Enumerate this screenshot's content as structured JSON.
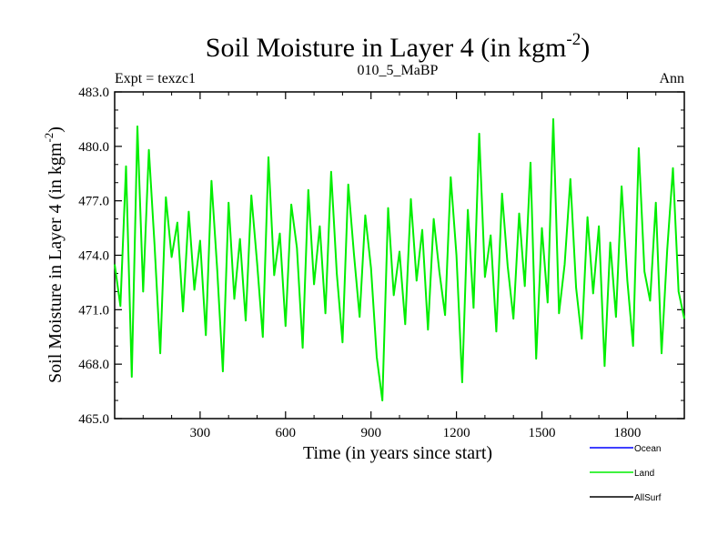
{
  "chart_data": {
    "type": "line",
    "title": "Soil Moisture in Layer 4 (in kgm",
    "title_sup": "-2",
    "title_close": ")",
    "subtitle_left": "Expt = texzc1",
    "subtitle_center": "010_5_MaBP",
    "subtitle_right": "Ann",
    "xlabel": "Time (in years since start)",
    "ylabel": "Soil Moisture in Layer 4 (in kgm",
    "ylabel_sup": "-2",
    "ylabel_close": ")",
    "xlim": [
      0,
      2000
    ],
    "ylim": [
      465.0,
      483.0
    ],
    "xticks": [
      300,
      600,
      900,
      1200,
      1500,
      1800
    ],
    "xtick_labels": [
      "300",
      "600",
      "900",
      "1200",
      "1500",
      "1800"
    ],
    "yticks": [
      465.0,
      468.0,
      471.0,
      474.0,
      477.0,
      480.0,
      483.0
    ],
    "ytick_labels": [
      "465.0",
      "468.0",
      "471.0",
      "474.0",
      "477.0",
      "480.0",
      "483.0"
    ],
    "series": [
      {
        "name": "Land",
        "color": "#00ee00",
        "x": [
          0,
          20,
          40,
          60,
          80,
          100,
          120,
          140,
          160,
          180,
          200,
          220,
          240,
          260,
          280,
          300,
          320,
          340,
          360,
          380,
          400,
          420,
          440,
          460,
          480,
          500,
          520,
          540,
          560,
          580,
          600,
          620,
          640,
          660,
          680,
          700,
          720,
          740,
          760,
          780,
          800,
          820,
          840,
          860,
          880,
          900,
          920,
          940,
          960,
          980,
          1000,
          1020,
          1040,
          1060,
          1080,
          1100,
          1120,
          1140,
          1160,
          1180,
          1200,
          1220,
          1240,
          1260,
          1280,
          1300,
          1320,
          1340,
          1360,
          1380,
          1400,
          1420,
          1440,
          1460,
          1480,
          1500,
          1520,
          1540,
          1560,
          1580,
          1600,
          1620,
          1640,
          1660,
          1680,
          1700,
          1720,
          1740,
          1760,
          1780,
          1800,
          1820,
          1840,
          1860,
          1880,
          1900,
          1920,
          1940,
          1960,
          1980,
          2000
        ],
        "values": [
          473.5,
          471.2,
          478.9,
          467.3,
          481.1,
          472.0,
          479.8,
          474.6,
          468.6,
          477.2,
          473.9,
          475.8,
          470.9,
          476.4,
          472.1,
          474.8,
          469.6,
          478.1,
          473.2,
          467.6,
          476.9,
          471.6,
          474.9,
          470.4,
          477.3,
          473.6,
          469.5,
          479.4,
          472.9,
          475.2,
          470.1,
          476.8,
          474.4,
          468.9,
          477.6,
          472.4,
          475.6,
          470.8,
          478.6,
          473.0,
          469.2,
          477.9,
          474.1,
          470.6,
          476.2,
          473.3,
          468.4,
          466.0,
          476.6,
          471.8,
          474.2,
          470.2,
          477.1,
          472.6,
          475.4,
          469.9,
          476.0,
          473.1,
          470.7,
          478.3,
          474.0,
          467.0,
          476.5,
          471.1,
          480.7,
          472.8,
          475.1,
          469.8,
          477.4,
          473.4,
          470.5,
          476.3,
          472.3,
          479.1,
          468.3,
          475.5,
          471.4,
          481.5,
          470.8,
          473.5,
          478.2,
          472.2,
          469.4,
          476.1,
          471.9,
          475.6,
          467.9,
          474.7,
          470.6,
          477.8,
          472.6,
          469.0,
          479.9,
          473.1,
          471.5,
          476.9,
          468.6,
          474.3,
          478.8,
          472.0,
          470.5
        ]
      }
    ],
    "legend": [
      {
        "label": "Ocean",
        "color": "#0000ff"
      },
      {
        "label": "Land",
        "color": "#00ee00"
      },
      {
        "label": "AllSurf",
        "color": "#000000"
      }
    ]
  }
}
